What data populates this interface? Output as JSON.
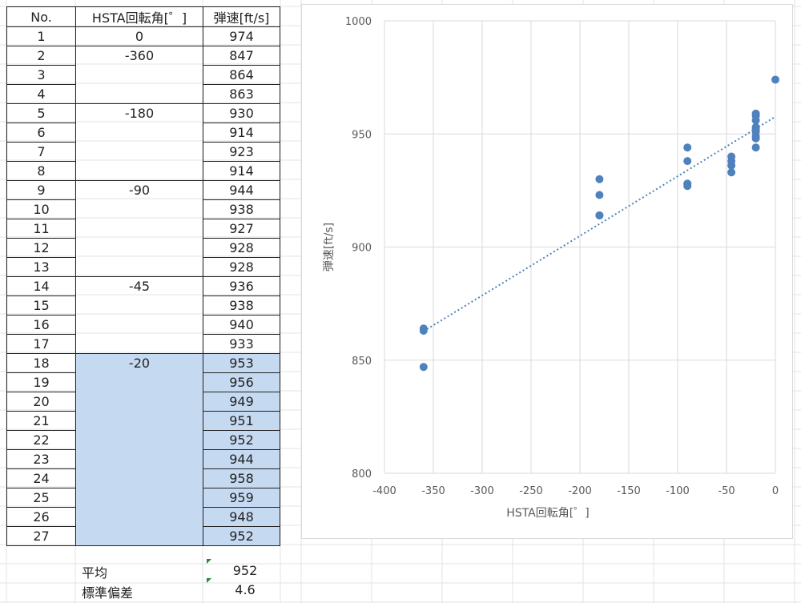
{
  "table": {
    "headers": [
      "No.",
      "HSTA回転角[゜]",
      "弾速[ft/s]"
    ],
    "rows": [
      {
        "no": "1",
        "angle": "0",
        "speed": "974"
      },
      {
        "no": "2",
        "angle": "-360",
        "speed": "847"
      },
      {
        "no": "3",
        "angle": "",
        "speed": "864"
      },
      {
        "no": "4",
        "angle": "",
        "speed": "863"
      },
      {
        "no": "5",
        "angle": "-180",
        "speed": "930"
      },
      {
        "no": "6",
        "angle": "",
        "speed": "914"
      },
      {
        "no": "7",
        "angle": "",
        "speed": "923"
      },
      {
        "no": "8",
        "angle": "",
        "speed": "914"
      },
      {
        "no": "9",
        "angle": "-90",
        "speed": "944"
      },
      {
        "no": "10",
        "angle": "",
        "speed": "938"
      },
      {
        "no": "11",
        "angle": "",
        "speed": "927"
      },
      {
        "no": "12",
        "angle": "",
        "speed": "928"
      },
      {
        "no": "13",
        "angle": "",
        "speed": "928"
      },
      {
        "no": "14",
        "angle": "-45",
        "speed": "936"
      },
      {
        "no": "15",
        "angle": "",
        "speed": "938"
      },
      {
        "no": "16",
        "angle": "",
        "speed": "940"
      },
      {
        "no": "17",
        "angle": "",
        "speed": "933"
      },
      {
        "no": "18",
        "angle": "-20",
        "speed": "953"
      },
      {
        "no": "19",
        "angle": "",
        "speed": "956"
      },
      {
        "no": "20",
        "angle": "",
        "speed": "949"
      },
      {
        "no": "21",
        "angle": "",
        "speed": "951"
      },
      {
        "no": "22",
        "angle": "",
        "speed": "952"
      },
      {
        "no": "23",
        "angle": "",
        "speed": "944"
      },
      {
        "no": "24",
        "angle": "",
        "speed": "958"
      },
      {
        "no": "25",
        "angle": "",
        "speed": "959"
      },
      {
        "no": "26",
        "angle": "",
        "speed": "948"
      },
      {
        "no": "27",
        "angle": "",
        "speed": "952"
      }
    ],
    "highlight_from_row": 18,
    "highlight_color": "#c5d9f1"
  },
  "summary": {
    "mean_label": "平均",
    "mean_value": "952",
    "std_label": "標準偏差",
    "std_value": "4.6"
  },
  "chart_data": {
    "type": "scatter",
    "title": "",
    "xlabel": "HSTA回転角[゜]",
    "ylabel": "弾速[ft/s]",
    "xlim": [
      -400,
      0
    ],
    "ylim": [
      800,
      1000
    ],
    "xticks": [
      -400,
      -350,
      -300,
      -250,
      -200,
      -150,
      -100,
      -50,
      0
    ],
    "yticks": [
      800,
      850,
      900,
      950,
      1000
    ],
    "grid": "vertical-and-horizontal",
    "marker_color": "#4f81bd",
    "trendline": {
      "type": "linear",
      "style": "dotted",
      "color": "#4f81bd"
    },
    "series": [
      {
        "points": [
          {
            "x": 0,
            "y": 974
          },
          {
            "x": -360,
            "y": 847
          },
          {
            "x": -360,
            "y": 864
          },
          {
            "x": -360,
            "y": 863
          },
          {
            "x": -180,
            "y": 930
          },
          {
            "x": -180,
            "y": 914
          },
          {
            "x": -180,
            "y": 923
          },
          {
            "x": -180,
            "y": 914
          },
          {
            "x": -90,
            "y": 944
          },
          {
            "x": -90,
            "y": 938
          },
          {
            "x": -90,
            "y": 927
          },
          {
            "x": -90,
            "y": 928
          },
          {
            "x": -90,
            "y": 928
          },
          {
            "x": -45,
            "y": 936
          },
          {
            "x": -45,
            "y": 938
          },
          {
            "x": -45,
            "y": 940
          },
          {
            "x": -45,
            "y": 933
          },
          {
            "x": -20,
            "y": 953
          },
          {
            "x": -20,
            "y": 956
          },
          {
            "x": -20,
            "y": 949
          },
          {
            "x": -20,
            "y": 951
          },
          {
            "x": -20,
            "y": 952
          },
          {
            "x": -20,
            "y": 944
          },
          {
            "x": -20,
            "y": 958
          },
          {
            "x": -20,
            "y": 959
          },
          {
            "x": -20,
            "y": 948
          },
          {
            "x": -20,
            "y": 952
          }
        ]
      }
    ]
  }
}
